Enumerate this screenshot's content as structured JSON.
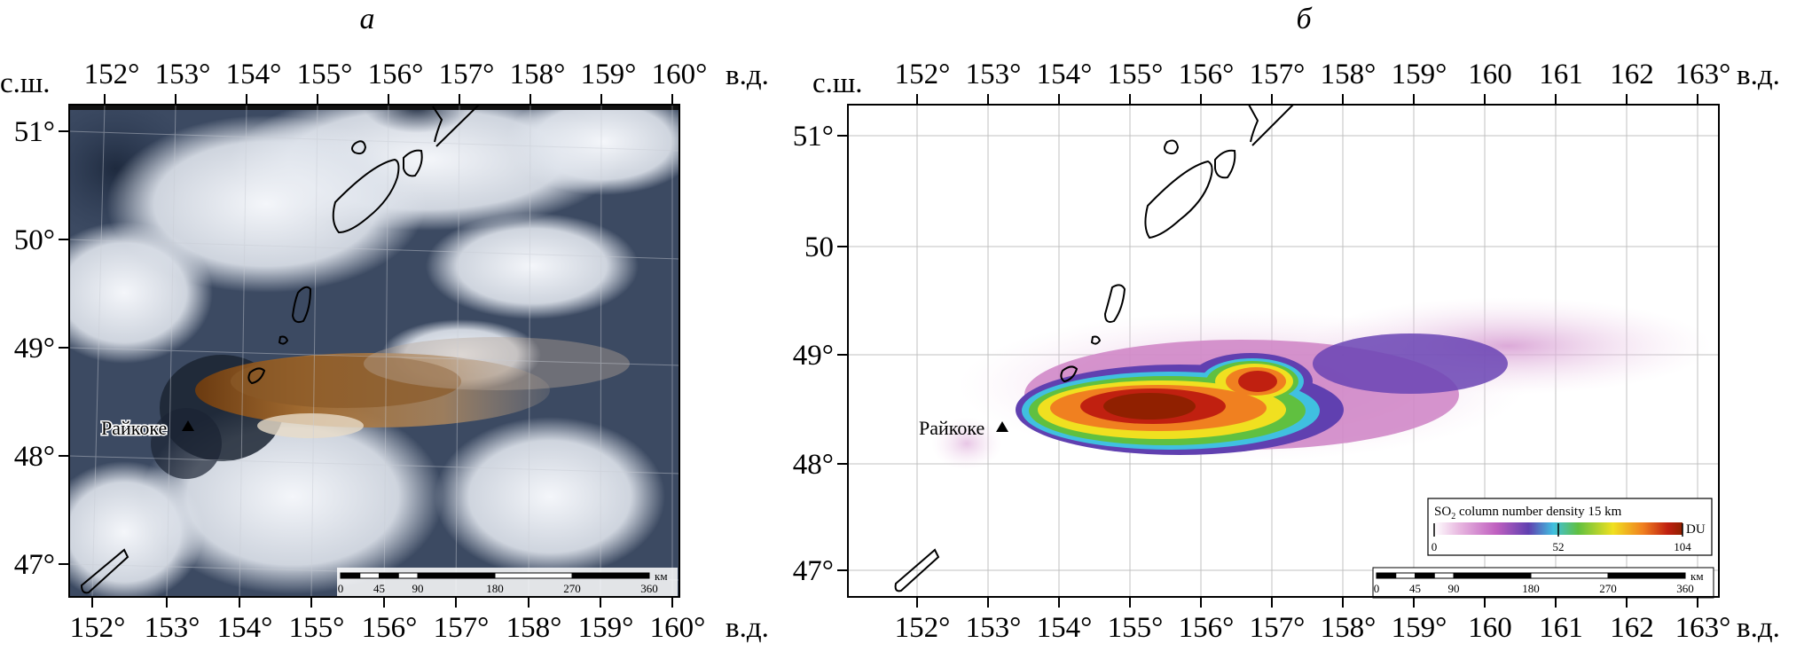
{
  "panel_a": {
    "letter": "а",
    "lat_label": "с.ш.",
    "lon_label": "в.д.",
    "lon_ticks": [
      "152°",
      "153°",
      "154°",
      "155°",
      "156°",
      "157°",
      "158°",
      "159°",
      "160°"
    ],
    "lat_ticks": [
      "51°",
      "50°",
      "49°",
      "48°",
      "47°"
    ],
    "volcano": "Райкоке",
    "scale_unit": "км",
    "scale_ticks": [
      "0",
      "45",
      "90",
      "180",
      "270",
      "360"
    ]
  },
  "panel_b": {
    "letter": "б",
    "lat_label": "с.ш.",
    "lon_label": "в.д.",
    "lon_ticks": [
      "152°",
      "153°",
      "154°",
      "155°",
      "156°",
      "157°",
      "158°",
      "159°",
      "160",
      "161",
      "162",
      "163°"
    ],
    "lat_ticks": [
      "51°",
      "50",
      "49°",
      "48°",
      "47°"
    ],
    "volcano": "Райкоке",
    "scale_unit": "км",
    "scale_ticks": [
      "0",
      "45",
      "90",
      "180",
      "270",
      "360"
    ],
    "legend": {
      "title_prefix": "SO",
      "title_sub": "2",
      "title_suffix": " column number density 15 km",
      "unit": "DU",
      "ticks": [
        "0",
        "52",
        "104"
      ],
      "colors": [
        "#ffffff",
        "#e8b8e0",
        "#c060c0",
        "#6040b0",
        "#40c0e0",
        "#60c040",
        "#f0e020",
        "#f08020",
        "#c02010",
        "#902000"
      ]
    }
  }
}
